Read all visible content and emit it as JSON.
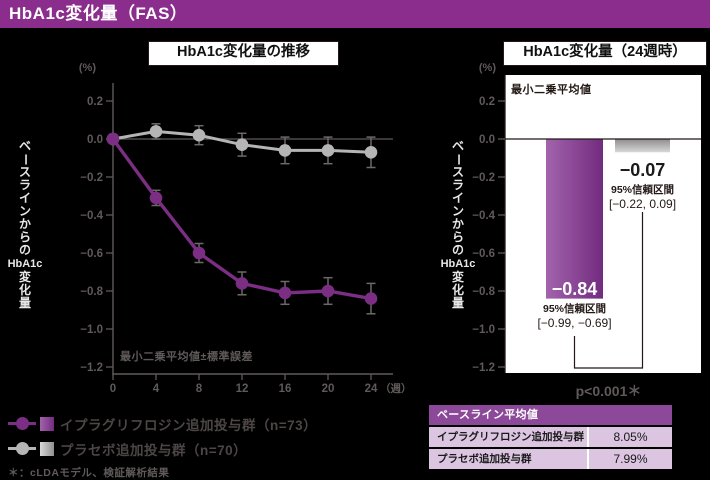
{
  "page": {
    "title": "HbA1c変化量（FAS）",
    "accent_color": "#8b2d8c",
    "background": "#000000"
  },
  "axis_labels": {
    "y_segments": [
      {
        "text": "ベースラインからの",
        "mode": "v"
      },
      {
        "text": "HbA1c",
        "mode": "h"
      },
      {
        "text": "変化量",
        "mode": "v"
      }
    ]
  },
  "chart_data": [
    {
      "type": "line",
      "title": "HbA1c変化量の推移",
      "y_unit": "(%)",
      "ylabel": "ベースラインからの HbA1c 変化量",
      "x": [
        0,
        4,
        8,
        12,
        16,
        20,
        24
      ],
      "x_unit": "（週）",
      "ylim": [
        -1.2,
        0.2
      ],
      "yticks": [
        0.2,
        0,
        -0.2,
        -0.4,
        -0.6,
        -0.8,
        -1.0,
        -1.2
      ],
      "note": "最小二乗平均値±標準誤差",
      "series": [
        {
          "name": "イプラグリフロジン追加投与群（n=73）",
          "color": "#7b2e83",
          "swatch": [
            "#a263ad",
            "#722c7e"
          ],
          "values": [
            0,
            -0.31,
            -0.6,
            -0.76,
            -0.81,
            -0.8,
            -0.84
          ],
          "se": [
            0,
            0.04,
            0.05,
            0.06,
            0.06,
            0.07,
            0.08
          ]
        },
        {
          "name": "プラセボ追加投与群（n=70）",
          "color": "#b5b5b6",
          "swatch": [
            "#d9d9d9",
            "#8f8f8f"
          ],
          "values": [
            0,
            0.04,
            0.02,
            -0.03,
            -0.06,
            -0.06,
            -0.07
          ],
          "se": [
            0,
            0.04,
            0.05,
            0.06,
            0.07,
            0.07,
            0.08
          ]
        }
      ]
    },
    {
      "type": "bar",
      "title": "HbA1c変化量（24週時）",
      "y_unit": "(%)",
      "ylabel": "ベースラインからの HbA1c 変化量",
      "note": "最小二乗平均値",
      "categories": [
        "イプラグリフロジン追加投与群",
        "プラセボ追加投与群"
      ],
      "values": [
        -0.84,
        -0.07
      ],
      "value_labels": [
        "−0.84",
        "−0.07"
      ],
      "ci_title": "95%信頼区間",
      "ci_ranges": [
        "[−0.99, −0.69]",
        "[−0.22, 0.09]"
      ],
      "ci": [
        [
          -0.99,
          -0.69
        ],
        [
          -0.22,
          0.09
        ]
      ],
      "ylim": [
        -1.2,
        0.2
      ],
      "yticks": [
        0.2,
        0,
        -0.2,
        -0.4,
        -0.6,
        -0.8,
        -1.0,
        -1.2
      ],
      "p_value": "p<0.001＊",
      "bar_gradients": [
        {
          "dir": "h",
          "from": "#a263ad",
          "to": "#722c7e"
        },
        {
          "dir": "v",
          "from": "#8d8d8d",
          "to": "#d8d8d8"
        }
      ]
    }
  ],
  "legend": {
    "footnote": "＊：cLDAモデル、検証解析結果"
  },
  "table": {
    "header": "ベースライン平均値",
    "header_bg": "#8c4899",
    "row_bg": "#dbc5e1",
    "rows": [
      {
        "label": "イプラグリフロジン追加投与群",
        "value": "8.05%"
      },
      {
        "label": "プラセボ追加投与群",
        "value": "7.99%"
      }
    ]
  }
}
